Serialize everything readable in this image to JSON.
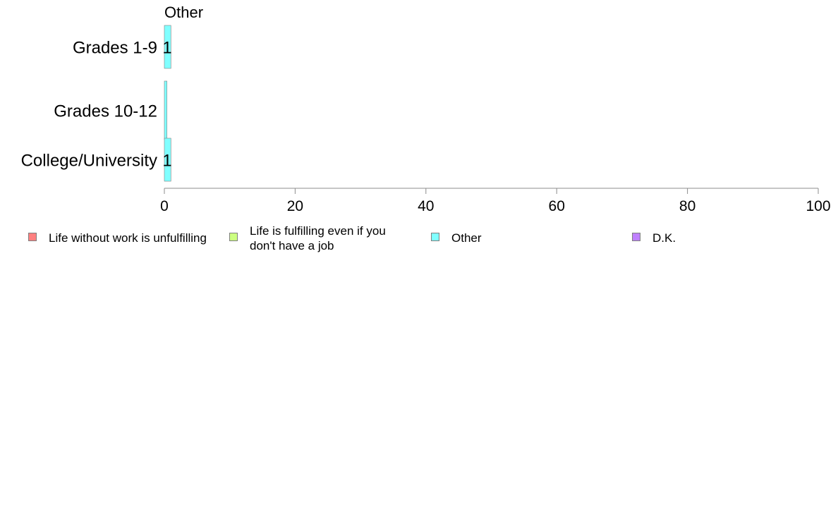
{
  "chart_data": {
    "type": "bar",
    "orientation": "horizontal",
    "panel_title": "Other",
    "categories": [
      "Grades 1-9",
      "Grades 10-12",
      "College/University"
    ],
    "series": [
      {
        "name": "Other",
        "color": "#80ffff",
        "values": [
          1,
          0.4,
          1
        ],
        "data_labels": [
          "1",
          "",
          "1"
        ]
      }
    ],
    "xlim": [
      0,
      100
    ],
    "xticks": [
      "0",
      "20",
      "40",
      "60",
      "80",
      "100"
    ],
    "grid": false,
    "legend_position": "bottom"
  },
  "legend": {
    "items": [
      {
        "label": "Life without work is unfulfilling",
        "color": "#ff8080"
      },
      {
        "label": "Life is fulfilling even if you don't have a job",
        "color": "#ccff80"
      },
      {
        "label": "Other",
        "color": "#80ffff"
      },
      {
        "label": "D.K.",
        "color": "#bf80ff"
      }
    ]
  }
}
